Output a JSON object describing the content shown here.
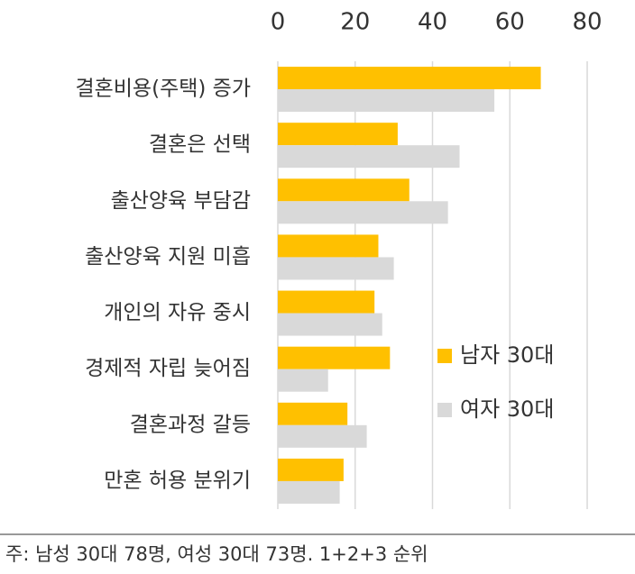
{
  "chart_data": {
    "type": "hbar",
    "categories": [
      "결혼비용(주택) 증가",
      "결혼은 선택",
      "출산양육 부담감",
      "출산양육 지원 미흡",
      "개인의 자유 중시",
      "경제적 자립 늦어짐",
      "결혼과정 갈등",
      "만혼 허용 분위기"
    ],
    "series": [
      {
        "name": "남자 30대",
        "color": "#FFC000",
        "values": [
          68,
          31,
          34,
          26,
          25,
          29,
          18,
          17
        ]
      },
      {
        "name": "여자 30대",
        "color": "#D9D9D9",
        "values": [
          56,
          47,
          44,
          30,
          27,
          13,
          23,
          16
        ]
      }
    ],
    "xlim": [
      0,
      80
    ],
    "xticks": [
      0,
      20,
      40,
      60,
      80
    ],
    "grid": true,
    "note": "주: 남성 30대 78명, 여성 30대 73명. 1+2+3 순위"
  }
}
